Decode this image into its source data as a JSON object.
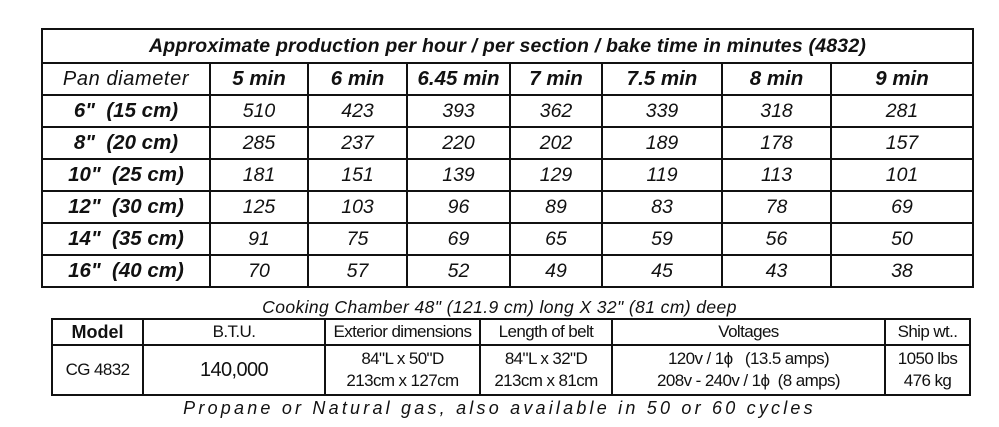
{
  "production": {
    "caption": "Approximate production per hour / per section / bake time in minutes (4832)",
    "corner_label": "Pan diameter",
    "columns": [
      "5 min",
      "6 min",
      "6.45 min",
      "7 min",
      "7.5 min",
      "8 min",
      "9 min"
    ],
    "rows": [
      {
        "label": "6\"  (15 cm)",
        "values": [
          "510",
          "423",
          "393",
          "362",
          "339",
          "318",
          "281"
        ]
      },
      {
        "label": "8\"  (20 cm)",
        "values": [
          "285",
          "237",
          "220",
          "202",
          "189",
          "178",
          "157"
        ]
      },
      {
        "label": "10\"  (25 cm)",
        "values": [
          "181",
          "151",
          "139",
          "129",
          "119",
          "113",
          "101"
        ]
      },
      {
        "label": "12\"  (30 cm)",
        "values": [
          "125",
          "103",
          "96",
          "89",
          "83",
          "78",
          "69"
        ]
      },
      {
        "label": "14\"  (35 cm)",
        "values": [
          "91",
          "75",
          "69",
          "65",
          "59",
          "56",
          "50"
        ]
      },
      {
        "label": "16\"  (40 cm)",
        "values": [
          "70",
          "57",
          "52",
          "49",
          "45",
          "43",
          "38"
        ]
      }
    ]
  },
  "chamber_note": "Cooking Chamber 48\" (121.9 cm) long X 32\" (81 cm) deep",
  "specs": {
    "headers": {
      "model": "Model",
      "btu": "B.T.U.",
      "exterior": "Exterior dimensions",
      "belt": "Length of belt",
      "voltages": "Voltages",
      "ship": "Ship wt.."
    },
    "row": {
      "model": "CG 4832",
      "btu": "140,000",
      "exterior_1": "84\"L x 50\"D",
      "exterior_2": "213cm x 127cm",
      "belt_1": "84\"L x 32\"D",
      "belt_2": "213cm x 81cm",
      "voltage_1": "120v / 1ϕ   (13.5 amps)",
      "voltage_2": "208v - 240v / 1ϕ  (8 amps)",
      "ship_1": "1050 lbs",
      "ship_2": "476 kg"
    }
  },
  "footer": "Propane or Natural gas, also available in 50 or 60 cycles"
}
